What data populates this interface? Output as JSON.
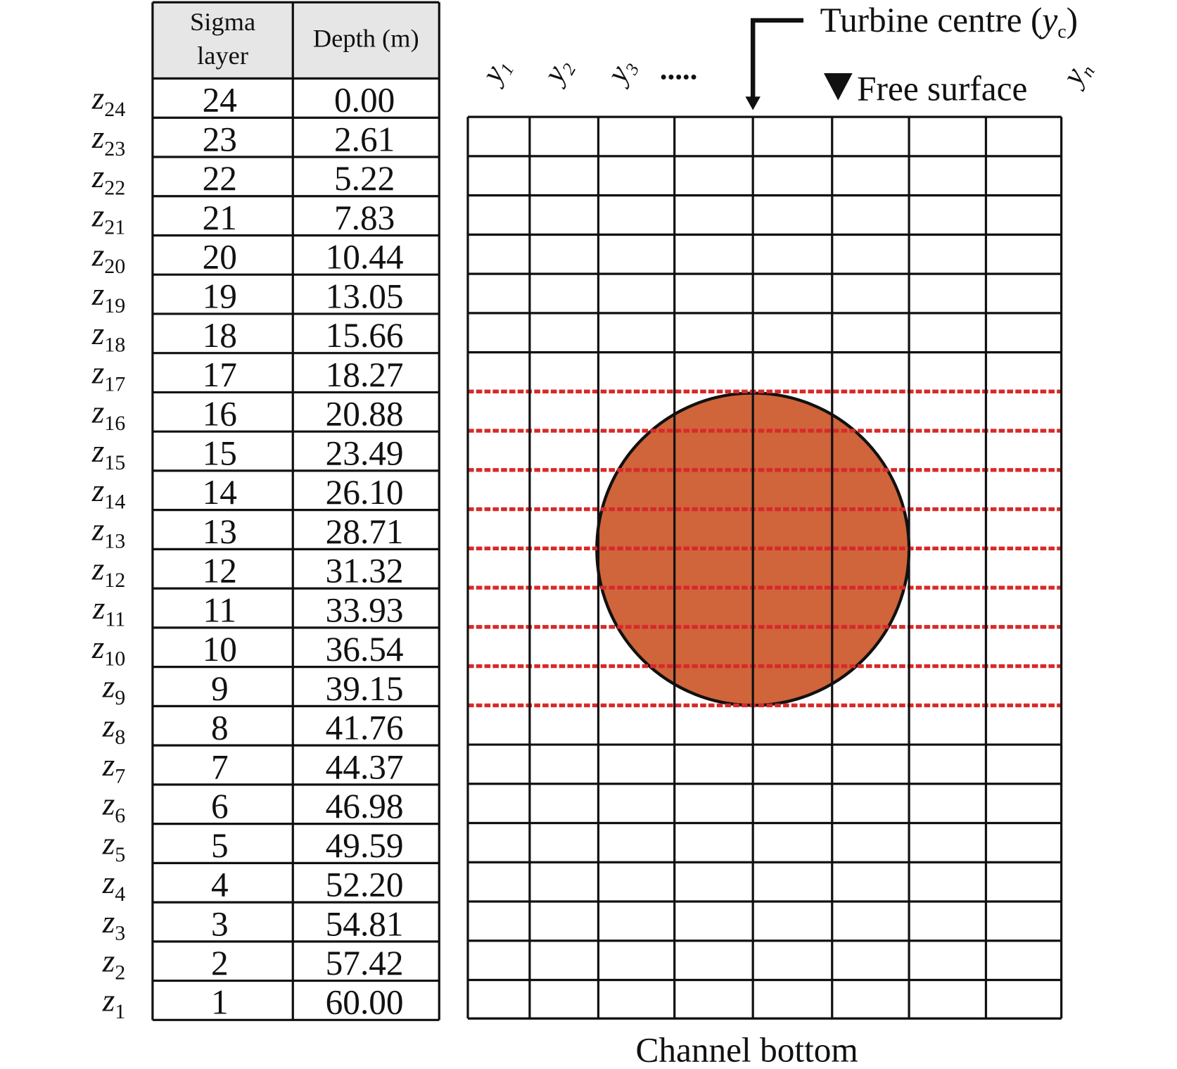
{
  "table": {
    "header": [
      "Sigma\nlayer",
      "Depth (m)"
    ],
    "rows": [
      {
        "z": "z",
        "sub": "24",
        "layer": "24",
        "depth": "0.00"
      },
      {
        "z": "z",
        "sub": "23",
        "layer": "23",
        "depth": "2.61"
      },
      {
        "z": "z",
        "sub": "22",
        "layer": "22",
        "depth": "5.22"
      },
      {
        "z": "z",
        "sub": "21",
        "layer": "21",
        "depth": "7.83"
      },
      {
        "z": "z",
        "sub": "20",
        "layer": "20",
        "depth": "10.44"
      },
      {
        "z": "z",
        "sub": "19",
        "layer": "19",
        "depth": "13.05"
      },
      {
        "z": "z",
        "sub": "18",
        "layer": "18",
        "depth": "15.66"
      },
      {
        "z": "z",
        "sub": "17",
        "layer": "17",
        "depth": "18.27"
      },
      {
        "z": "z",
        "sub": "16",
        "layer": "16",
        "depth": "20.88"
      },
      {
        "z": "z",
        "sub": "15",
        "layer": "15",
        "depth": "23.49"
      },
      {
        "z": "z",
        "sub": "14",
        "layer": "14",
        "depth": "26.10"
      },
      {
        "z": "z",
        "sub": "13",
        "layer": "13",
        "depth": "28.71"
      },
      {
        "z": "z",
        "sub": "12",
        "layer": "12",
        "depth": "31.32"
      },
      {
        "z": "z",
        "sub": "11",
        "layer": "11",
        "depth": "33.93"
      },
      {
        "z": "z",
        "sub": "10",
        "layer": "10",
        "depth": "36.54"
      },
      {
        "z": "z",
        "sub": "9",
        "layer": "9",
        "depth": "39.15"
      },
      {
        "z": "z",
        "sub": "8",
        "layer": "8",
        "depth": "41.76"
      },
      {
        "z": "z",
        "sub": "7",
        "layer": "7",
        "depth": "44.37"
      },
      {
        "z": "z",
        "sub": "6",
        "layer": "6",
        "depth": "46.98"
      },
      {
        "z": "z",
        "sub": "5",
        "layer": "5",
        "depth": "49.59"
      },
      {
        "z": "z",
        "sub": "4",
        "layer": "4",
        "depth": "52.20"
      },
      {
        "z": "z",
        "sub": "3",
        "layer": "3",
        "depth": "54.81"
      },
      {
        "z": "z",
        "sub": "2",
        "layer": "2",
        "depth": "57.42"
      },
      {
        "z": "z",
        "sub": "1",
        "layer": "1",
        "depth": "60.00"
      }
    ]
  },
  "diagram": {
    "turbine_label": [
      "Turbine centre (",
      "y",
      "c",
      ")"
    ],
    "free_surface": "Free surface",
    "channel_bottom": "Channel bottom",
    "y_labels": [
      {
        "y": "y",
        "sub": "1"
      },
      {
        "y": "y",
        "sub": "2"
      },
      {
        "y": "y",
        "sub": "3"
      },
      {
        "y": "y",
        "sub": "n"
      }
    ],
    "ellipsis": "....."
  }
}
